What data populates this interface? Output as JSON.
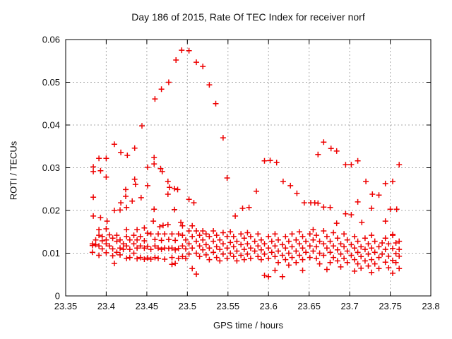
{
  "chart_data": {
    "type": "scatter",
    "title": "Day 186 of 2015, Rate Of TEC Index for receiver norf",
    "xlabel": "GPS time / hours",
    "ylabel": "ROTI / TECUs",
    "xlim": [
      23.35,
      23.8
    ],
    "ylim": [
      0,
      0.06
    ],
    "grid": "dotted, both axes",
    "legend": "none",
    "marker": "plus",
    "marker_color": "#ee0000",
    "grid_color": "#aaaaaa",
    "axis_color": "#000000",
    "xticks": [
      {
        "v": 23.35,
        "label": "23.35"
      },
      {
        "v": 23.4,
        "label": "23.4"
      },
      {
        "v": 23.45,
        "label": "23.45"
      },
      {
        "v": 23.5,
        "label": "23.5"
      },
      {
        "v": 23.55,
        "label": "23.55"
      },
      {
        "v": 23.6,
        "label": "23.6"
      },
      {
        "v": 23.65,
        "label": "23.65"
      },
      {
        "v": 23.7,
        "label": "23.7"
      },
      {
        "v": 23.75,
        "label": "23.75"
      },
      {
        "v": 23.8,
        "label": "23.8"
      }
    ],
    "yticks": [
      {
        "v": 0,
        "label": "0"
      },
      {
        "v": 0.01,
        "label": "0.01"
      },
      {
        "v": 0.02,
        "label": "0.02"
      },
      {
        "v": 0.03,
        "label": "0.03"
      },
      {
        "v": 0.04,
        "label": "0.04"
      },
      {
        "v": 0.05,
        "label": "0.05"
      },
      {
        "v": 0.06,
        "label": "0.06"
      }
    ],
    "points": [
      [
        23.384,
        0.0302
      ],
      [
        23.384,
        0.0291
      ],
      [
        23.384,
        0.0231
      ],
      [
        23.384,
        0.0187
      ],
      [
        23.391,
        0.0322
      ],
      [
        23.393,
        0.0293
      ],
      [
        23.4,
        0.0322
      ],
      [
        23.4,
        0.0278
      ],
      [
        23.41,
        0.0355
      ],
      [
        23.41,
        0.02
      ],
      [
        23.417,
        0.0201
      ],
      [
        23.418,
        0.0336
      ],
      [
        23.418,
        0.0218
      ],
      [
        23.424,
        0.0249
      ],
      [
        23.426,
        0.0329
      ],
      [
        23.424,
        0.0233
      ],
      [
        23.432,
        0.0222
      ],
      [
        23.435,
        0.0346
      ],
      [
        23.435,
        0.0273
      ],
      [
        23.436,
        0.0261
      ],
      [
        23.425,
        0.0207
      ],
      [
        23.393,
        0.0183
      ],
      [
        23.401,
        0.0175
      ],
      [
        23.444,
        0.0398
      ],
      [
        23.46,
        0.0461
      ],
      [
        23.468,
        0.0484
      ],
      [
        23.477,
        0.05
      ],
      [
        23.486,
        0.0552
      ],
      [
        23.493,
        0.0575
      ],
      [
        23.502,
        0.0574
      ],
      [
        23.511,
        0.0547
      ],
      [
        23.519,
        0.0537
      ],
      [
        23.527,
        0.0494
      ],
      [
        23.535,
        0.045
      ],
      [
        23.544,
        0.037
      ],
      [
        23.451,
        0.0301
      ],
      [
        23.451,
        0.0258
      ],
      [
        23.459,
        0.0324
      ],
      [
        23.459,
        0.0309
      ],
      [
        23.467,
        0.0298
      ],
      [
        23.469,
        0.0291
      ],
      [
        23.476,
        0.0268
      ],
      [
        23.478,
        0.0254
      ],
      [
        23.484,
        0.0251
      ],
      [
        23.488,
        0.0249
      ],
      [
        23.476,
        0.0238
      ],
      [
        23.502,
        0.0226
      ],
      [
        23.508,
        0.0218
      ],
      [
        23.459,
        0.0203
      ],
      [
        23.484,
        0.0202
      ],
      [
        23.443,
        0.023
      ],
      [
        23.458,
        0.0175
      ],
      [
        23.492,
        0.0172
      ],
      [
        23.466,
        0.0162
      ],
      [
        23.47,
        0.0165
      ],
      [
        23.476,
        0.0167
      ],
      [
        23.549,
        0.0276
      ],
      [
        23.559,
        0.0187
      ],
      [
        23.568,
        0.0205
      ],
      [
        23.576,
        0.0207
      ],
      [
        23.585,
        0.0245
      ],
      [
        23.595,
        0.0316
      ],
      [
        23.602,
        0.0317
      ],
      [
        23.61,
        0.0312
      ],
      [
        23.618,
        0.0268
      ],
      [
        23.627,
        0.0258
      ],
      [
        23.635,
        0.024
      ],
      [
        23.644,
        0.0218
      ],
      [
        23.652,
        0.0218
      ],
      [
        23.657,
        0.0218
      ],
      [
        23.661,
        0.0217
      ],
      [
        23.661,
        0.0331
      ],
      [
        23.668,
        0.036
      ],
      [
        23.677,
        0.0345
      ],
      [
        23.684,
        0.0339
      ],
      [
        23.695,
        0.0307
      ],
      [
        23.702,
        0.0307
      ],
      [
        23.71,
        0.0316
      ],
      [
        23.72,
        0.0268
      ],
      [
        23.728,
        0.0238
      ],
      [
        23.736,
        0.0236
      ],
      [
        23.744,
        0.0263
      ],
      [
        23.753,
        0.0268
      ],
      [
        23.761,
        0.0307
      ],
      [
        23.71,
        0.022
      ],
      [
        23.668,
        0.0208
      ],
      [
        23.676,
        0.0207
      ],
      [
        23.695,
        0.0192
      ],
      [
        23.702,
        0.019
      ],
      [
        23.727,
        0.0205
      ],
      [
        23.75,
        0.0203
      ],
      [
        23.758,
        0.0203
      ],
      [
        23.715,
        0.0172
      ],
      [
        23.744,
        0.0175
      ],
      [
        23.684,
        0.017
      ],
      [
        23.753,
        0.0144
      ],
      [
        23.383,
        0.0122
      ],
      [
        23.383,
        0.0118
      ],
      [
        23.383,
        0.0102
      ],
      [
        23.387,
        0.0131
      ],
      [
        23.387,
        0.012
      ],
      [
        23.391,
        0.0155
      ],
      [
        23.391,
        0.0142
      ],
      [
        23.391,
        0.0117
      ],
      [
        23.391,
        0.0095
      ],
      [
        23.395,
        0.0139
      ],
      [
        23.395,
        0.0129
      ],
      [
        23.395,
        0.011
      ],
      [
        23.4,
        0.0157
      ],
      [
        23.4,
        0.0131
      ],
      [
        23.4,
        0.0122
      ],
      [
        23.4,
        0.0101
      ],
      [
        23.404,
        0.0143
      ],
      [
        23.404,
        0.0117
      ],
      [
        23.408,
        0.0135
      ],
      [
        23.408,
        0.011
      ],
      [
        23.408,
        0.0094
      ],
      [
        23.41,
        0.0076
      ],
      [
        23.413,
        0.0142
      ],
      [
        23.413,
        0.0128
      ],
      [
        23.413,
        0.0102
      ],
      [
        23.417,
        0.0131
      ],
      [
        23.417,
        0.0112
      ],
      [
        23.417,
        0.0096
      ],
      [
        23.421,
        0.0122
      ],
      [
        23.421,
        0.0109
      ],
      [
        23.425,
        0.0155
      ],
      [
        23.425,
        0.0139
      ],
      [
        23.425,
        0.0117
      ],
      [
        23.425,
        0.0088
      ],
      [
        23.429,
        0.0131
      ],
      [
        23.429,
        0.0109
      ],
      [
        23.429,
        0.009
      ],
      [
        23.434,
        0.0142
      ],
      [
        23.434,
        0.0122
      ],
      [
        23.434,
        0.01
      ],
      [
        23.438,
        0.0155
      ],
      [
        23.438,
        0.0131
      ],
      [
        23.438,
        0.0112
      ],
      [
        23.438,
        0.0087
      ],
      [
        23.442,
        0.0139
      ],
      [
        23.442,
        0.0117
      ],
      [
        23.442,
        0.009
      ],
      [
        23.447,
        0.0159
      ],
      [
        23.447,
        0.0129
      ],
      [
        23.447,
        0.0112
      ],
      [
        23.447,
        0.0086
      ],
      [
        23.451,
        0.0147
      ],
      [
        23.451,
        0.0116
      ],
      [
        23.451,
        0.0089
      ],
      [
        23.455,
        0.0145
      ],
      [
        23.455,
        0.0109
      ],
      [
        23.455,
        0.0086
      ],
      [
        23.46,
        0.0132
      ],
      [
        23.46,
        0.0117
      ],
      [
        23.46,
        0.009
      ],
      [
        23.464,
        0.0145
      ],
      [
        23.464,
        0.0112
      ],
      [
        23.464,
        0.0088
      ],
      [
        23.468,
        0.013
      ],
      [
        23.468,
        0.0109
      ],
      [
        23.472,
        0.0145
      ],
      [
        23.472,
        0.0112
      ],
      [
        23.472,
        0.0086
      ],
      [
        23.477,
        0.0132
      ],
      [
        23.477,
        0.0111
      ],
      [
        23.481,
        0.0145
      ],
      [
        23.481,
        0.0112
      ],
      [
        23.481,
        0.009
      ],
      [
        23.481,
        0.0074
      ],
      [
        23.485,
        0.013
      ],
      [
        23.485,
        0.0108
      ],
      [
        23.485,
        0.0076
      ],
      [
        23.489,
        0.0145
      ],
      [
        23.489,
        0.0111
      ],
      [
        23.489,
        0.0088
      ],
      [
        23.494,
        0.0164
      ],
      [
        23.494,
        0.0142
      ],
      [
        23.494,
        0.0117
      ],
      [
        23.494,
        0.0092
      ],
      [
        23.498,
        0.0131
      ],
      [
        23.498,
        0.011
      ],
      [
        23.498,
        0.0088
      ],
      [
        23.502,
        0.0152
      ],
      [
        23.502,
        0.0122
      ],
      [
        23.502,
        0.0098
      ],
      [
        23.506,
        0.0164
      ],
      [
        23.506,
        0.0139
      ],
      [
        23.506,
        0.0112
      ],
      [
        23.506,
        0.0064
      ],
      [
        23.511,
        0.0152
      ],
      [
        23.511,
        0.0128
      ],
      [
        23.511,
        0.01
      ],
      [
        23.511,
        0.0051
      ],
      [
        23.515,
        0.0142
      ],
      [
        23.515,
        0.0117
      ],
      [
        23.515,
        0.0092
      ],
      [
        23.519,
        0.0152
      ],
      [
        23.519,
        0.0131
      ],
      [
        23.519,
        0.0108
      ],
      [
        23.523,
        0.0145
      ],
      [
        23.523,
        0.012
      ],
      [
        23.523,
        0.0096
      ],
      [
        23.527,
        0.0139
      ],
      [
        23.527,
        0.0112
      ],
      [
        23.527,
        0.0085
      ],
      [
        23.532,
        0.0152
      ],
      [
        23.532,
        0.0128
      ],
      [
        23.532,
        0.0102
      ],
      [
        23.536,
        0.0142
      ],
      [
        23.536,
        0.0115
      ],
      [
        23.536,
        0.009
      ],
      [
        23.54,
        0.0131
      ],
      [
        23.54,
        0.0109
      ],
      [
        23.54,
        0.0082
      ],
      [
        23.544,
        0.0148
      ],
      [
        23.544,
        0.0122
      ],
      [
        23.544,
        0.0098
      ],
      [
        23.549,
        0.0139
      ],
      [
        23.549,
        0.0112
      ],
      [
        23.549,
        0.0088
      ],
      [
        23.553,
        0.015
      ],
      [
        23.553,
        0.0125
      ],
      [
        23.553,
        0.01
      ],
      [
        23.557,
        0.0139
      ],
      [
        23.557,
        0.0115
      ],
      [
        23.557,
        0.0092
      ],
      [
        23.561,
        0.0128
      ],
      [
        23.561,
        0.0105
      ],
      [
        23.561,
        0.0082
      ],
      [
        23.566,
        0.0145
      ],
      [
        23.566,
        0.012
      ],
      [
        23.566,
        0.0095
      ],
      [
        23.57,
        0.0135
      ],
      [
        23.57,
        0.0109
      ],
      [
        23.57,
        0.0085
      ],
      [
        23.574,
        0.0148
      ],
      [
        23.574,
        0.0122
      ],
      [
        23.574,
        0.0098
      ],
      [
        23.578,
        0.0139
      ],
      [
        23.578,
        0.0112
      ],
      [
        23.578,
        0.0088
      ],
      [
        23.583,
        0.0128
      ],
      [
        23.583,
        0.0105
      ],
      [
        23.587,
        0.0145
      ],
      [
        23.587,
        0.0117
      ],
      [
        23.587,
        0.0092
      ],
      [
        23.591,
        0.0131
      ],
      [
        23.591,
        0.0108
      ],
      [
        23.591,
        0.0085
      ],
      [
        23.595,
        0.0122
      ],
      [
        23.595,
        0.0098
      ],
      [
        23.595,
        0.0048
      ],
      [
        23.6,
        0.0139
      ],
      [
        23.6,
        0.0112
      ],
      [
        23.6,
        0.0088
      ],
      [
        23.6,
        0.0045
      ],
      [
        23.604,
        0.0128
      ],
      [
        23.604,
        0.0102
      ],
      [
        23.608,
        0.0145
      ],
      [
        23.608,
        0.0117
      ],
      [
        23.608,
        0.0092
      ],
      [
        23.608,
        0.006
      ],
      [
        23.612,
        0.0131
      ],
      [
        23.612,
        0.0105
      ],
      [
        23.612,
        0.0078
      ],
      [
        23.617,
        0.012
      ],
      [
        23.617,
        0.0095
      ],
      [
        23.617,
        0.0045
      ],
      [
        23.621,
        0.0139
      ],
      [
        23.621,
        0.0112
      ],
      [
        23.621,
        0.0085
      ],
      [
        23.625,
        0.0128
      ],
      [
        23.625,
        0.01
      ],
      [
        23.625,
        0.0072
      ],
      [
        23.629,
        0.0145
      ],
      [
        23.629,
        0.0115
      ],
      [
        23.629,
        0.009
      ],
      [
        23.634,
        0.0131
      ],
      [
        23.634,
        0.0105
      ],
      [
        23.634,
        0.0078
      ],
      [
        23.638,
        0.015
      ],
      [
        23.638,
        0.0122
      ],
      [
        23.638,
        0.0095
      ],
      [
        23.642,
        0.0139
      ],
      [
        23.642,
        0.0112
      ],
      [
        23.642,
        0.0085
      ],
      [
        23.642,
        0.006
      ],
      [
        23.646,
        0.0128
      ],
      [
        23.646,
        0.0102
      ],
      [
        23.651,
        0.0145
      ],
      [
        23.651,
        0.0117
      ],
      [
        23.651,
        0.009
      ],
      [
        23.655,
        0.0155
      ],
      [
        23.655,
        0.0131
      ],
      [
        23.655,
        0.0105
      ],
      [
        23.659,
        0.0142
      ],
      [
        23.659,
        0.0115
      ],
      [
        23.659,
        0.0088
      ],
      [
        23.663,
        0.0128
      ],
      [
        23.663,
        0.01
      ],
      [
        23.663,
        0.0075
      ],
      [
        23.668,
        0.0152
      ],
      [
        23.668,
        0.0122
      ],
      [
        23.668,
        0.0095
      ],
      [
        23.672,
        0.0139
      ],
      [
        23.672,
        0.0112
      ],
      [
        23.672,
        0.0062
      ],
      [
        23.676,
        0.0128
      ],
      [
        23.676,
        0.0102
      ],
      [
        23.676,
        0.0078
      ],
      [
        23.68,
        0.0148
      ],
      [
        23.68,
        0.0117
      ],
      [
        23.68,
        0.009
      ],
      [
        23.685,
        0.0135
      ],
      [
        23.685,
        0.0108
      ],
      [
        23.685,
        0.0082
      ],
      [
        23.689,
        0.0122
      ],
      [
        23.689,
        0.0098
      ],
      [
        23.689,
        0.0068
      ],
      [
        23.693,
        0.0145
      ],
      [
        23.693,
        0.0115
      ],
      [
        23.693,
        0.0088
      ],
      [
        23.697,
        0.0131
      ],
      [
        23.697,
        0.0105
      ],
      [
        23.697,
        0.0078
      ],
      [
        23.702,
        0.012
      ],
      [
        23.702,
        0.0095
      ],
      [
        23.706,
        0.0139
      ],
      [
        23.706,
        0.0112
      ],
      [
        23.706,
        0.0085
      ],
      [
        23.706,
        0.0058
      ],
      [
        23.71,
        0.0128
      ],
      [
        23.71,
        0.0102
      ],
      [
        23.71,
        0.0075
      ],
      [
        23.714,
        0.0115
      ],
      [
        23.714,
        0.0092
      ],
      [
        23.714,
        0.0065
      ],
      [
        23.719,
        0.0135
      ],
      [
        23.719,
        0.0109
      ],
      [
        23.719,
        0.0082
      ],
      [
        23.723,
        0.0122
      ],
      [
        23.723,
        0.0098
      ],
      [
        23.723,
        0.007
      ],
      [
        23.727,
        0.0142
      ],
      [
        23.727,
        0.0112
      ],
      [
        23.727,
        0.0085
      ],
      [
        23.727,
        0.0055
      ],
      [
        23.731,
        0.0128
      ],
      [
        23.731,
        0.0102
      ],
      [
        23.731,
        0.0075
      ],
      [
        23.736,
        0.0115
      ],
      [
        23.736,
        0.009
      ],
      [
        23.736,
        0.0064
      ],
      [
        23.74,
        0.0124
      ],
      [
        23.74,
        0.0098
      ],
      [
        23.744,
        0.0135
      ],
      [
        23.744,
        0.0109
      ],
      [
        23.744,
        0.0079
      ],
      [
        23.748,
        0.0122
      ],
      [
        23.748,
        0.0093
      ],
      [
        23.748,
        0.0066
      ],
      [
        23.753,
        0.0142
      ],
      [
        23.753,
        0.0111
      ],
      [
        23.753,
        0.0083
      ],
      [
        23.753,
        0.0053
      ],
      [
        23.757,
        0.0124
      ],
      [
        23.757,
        0.0099
      ],
      [
        23.757,
        0.0078
      ],
      [
        23.761,
        0.0128
      ],
      [
        23.761,
        0.0109
      ],
      [
        23.761,
        0.0093
      ],
      [
        23.761,
        0.0064
      ]
    ]
  }
}
